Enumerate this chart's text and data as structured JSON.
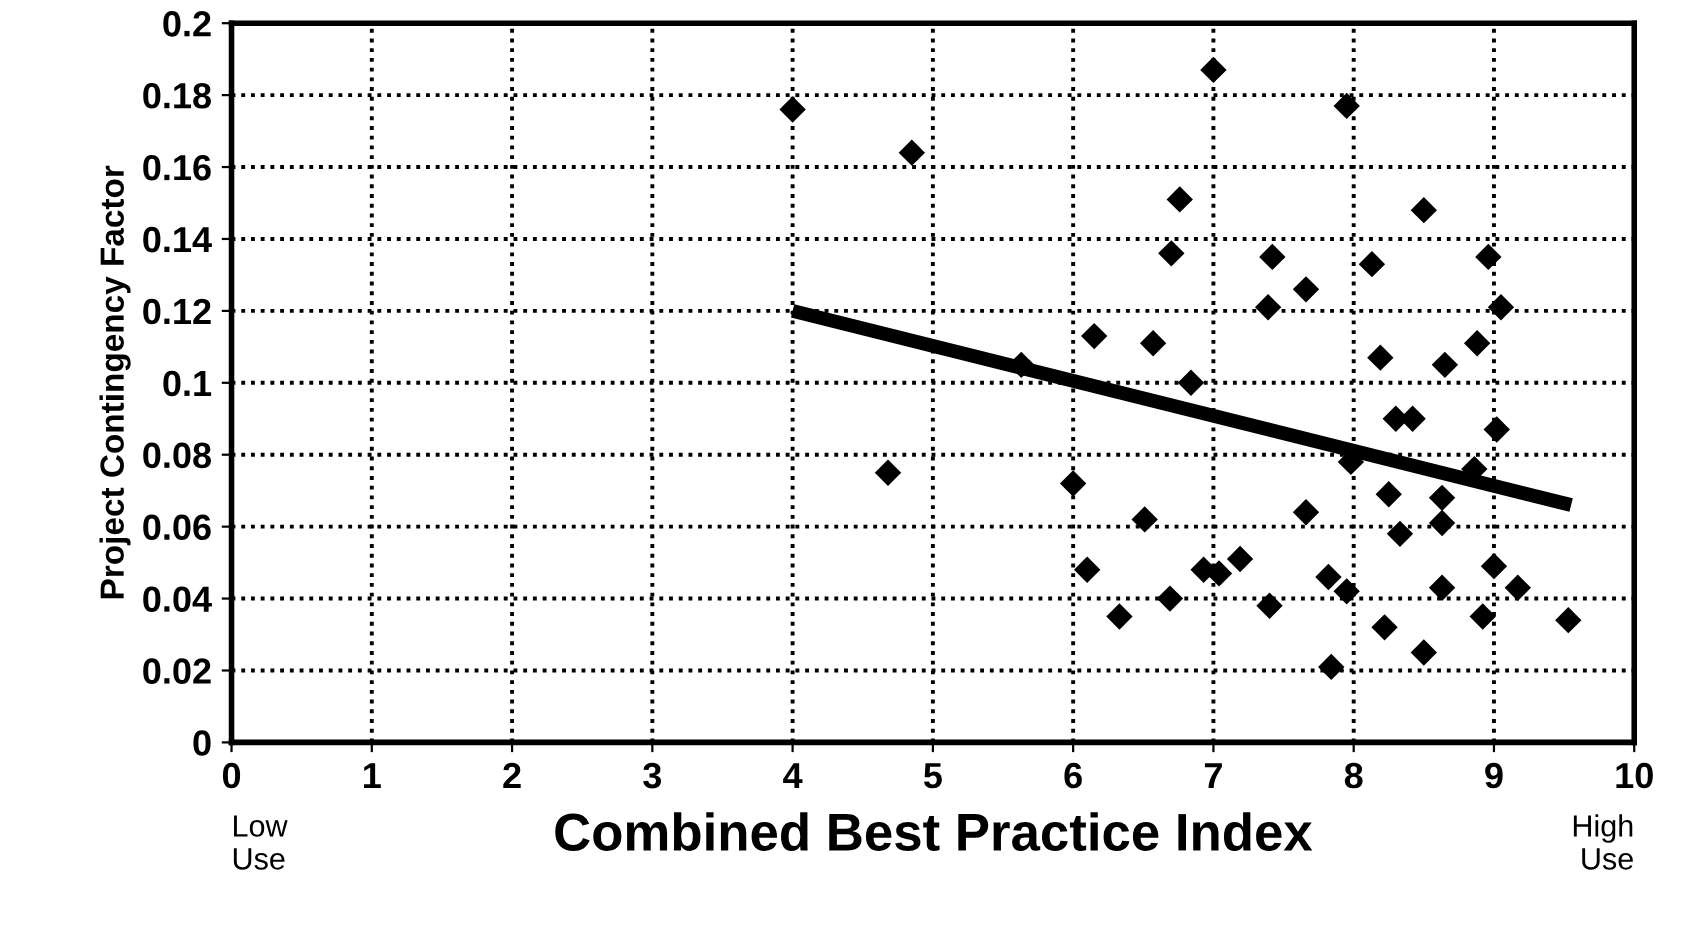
{
  "chart_data": {
    "type": "scatter",
    "xlabel": "Combined Best Practice Index",
    "ylabel": "Project Contingency Factor",
    "annotations": [
      "Low\nUse",
      "High\nUse"
    ],
    "xlim": [
      0,
      10
    ],
    "xticks": [
      0,
      1,
      2,
      3,
      4,
      5,
      6,
      7,
      8,
      9,
      10
    ],
    "ylim": [
      0,
      0.2
    ],
    "yticks": [
      0,
      0.02,
      0.04,
      0.06,
      0.08,
      0.1,
      0.12,
      0.14,
      0.16,
      0.18,
      0.2
    ],
    "grid": true,
    "marker": "diamond",
    "series": [
      {
        "color": "#000000",
        "x": [
          4.0,
          4.85,
          4.68,
          5.63,
          6.0,
          6.15,
          6.57,
          6.76,
          6.7,
          6.84,
          6.1,
          6.51,
          6.33,
          6.69,
          6.93,
          7.04,
          7.0,
          7.95,
          7.42,
          7.39,
          7.66,
          7.66,
          7.19,
          7.4,
          7.82,
          7.95,
          7.84,
          7.98,
          8.13,
          8.19,
          8.3,
          8.42,
          8.5,
          8.65,
          8.88,
          8.96,
          9.05,
          9.02,
          8.86,
          8.25,
          8.33,
          8.63,
          8.63,
          8.63,
          9.0,
          9.17,
          8.92,
          9.53,
          8.22,
          8.5
        ],
        "values": [
          0.176,
          0.164,
          0.075,
          0.105,
          0.072,
          0.113,
          0.111,
          0.151,
          0.136,
          0.1,
          0.048,
          0.062,
          0.035,
          0.04,
          0.048,
          0.047,
          0.187,
          0.177,
          0.135,
          0.121,
          0.126,
          0.064,
          0.051,
          0.038,
          0.046,
          0.042,
          0.021,
          0.078,
          0.133,
          0.107,
          0.09,
          0.09,
          0.148,
          0.105,
          0.111,
          0.135,
          0.121,
          0.087,
          0.076,
          0.069,
          0.058,
          0.068,
          0.061,
          0.043,
          0.049,
          0.043,
          0.035,
          0.034,
          0.032,
          0.025
        ]
      },
      {
        "type": "line",
        "color": "#000000",
        "line_style": "solid",
        "marker": "none",
        "x": [
          4.0,
          9.55
        ],
        "values": [
          0.12,
          0.066
        ]
      }
    ]
  }
}
